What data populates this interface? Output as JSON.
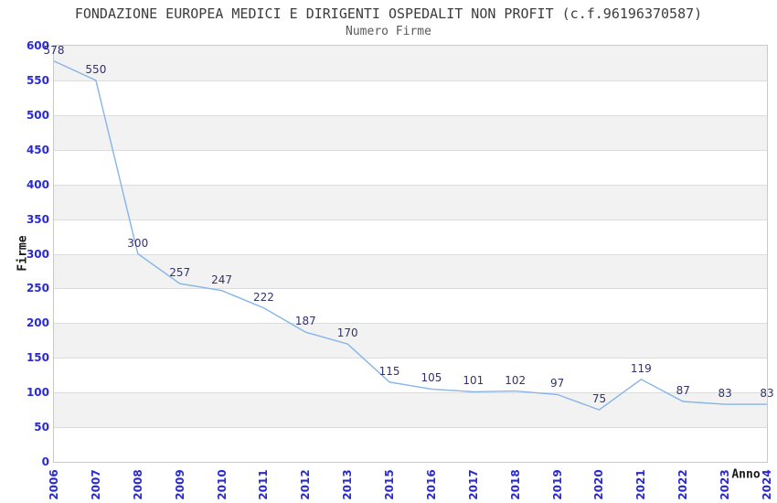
{
  "header": {
    "title": "FONDAZIONE EUROPEA MEDICI E DIRIGENTI OSPEDALIT NON PROFIT (c.f.96196370587)",
    "subtitle": "Numero Firme"
  },
  "chart_data": {
    "type": "line",
    "title": "FONDAZIONE EUROPEA MEDICI E DIRIGENTI OSPEDALIT NON PROFIT (c.f.96196370587)",
    "subtitle": "Numero Firme",
    "xlabel": "Anno",
    "ylabel": "Firme",
    "categories": [
      "2006",
      "2007",
      "2008",
      "2009",
      "2010",
      "2011",
      "2012",
      "2013",
      "2015",
      "2016",
      "2017",
      "2018",
      "2019",
      "2020",
      "2021",
      "2022",
      "2023",
      "2024"
    ],
    "values": [
      578,
      550,
      300,
      257,
      247,
      222,
      187,
      170,
      115,
      105,
      101,
      102,
      97,
      75,
      119,
      87,
      83,
      83
    ],
    "ylim": [
      0,
      600
    ],
    "ytick_step": 50,
    "grid": true,
    "legend_position": "none",
    "value_labels_shown": true,
    "colors": {
      "line": "#85b5e9",
      "tick_label": "#2a2ad0",
      "value_label": "#32326e",
      "band_gray": "#f2f2f2",
      "band_white": "#ffffff",
      "gridline": "#dcdcdc",
      "plot_border": "#c9c9c9",
      "title": "#3c3c3c",
      "subtitle": "#5a5a5a"
    }
  }
}
